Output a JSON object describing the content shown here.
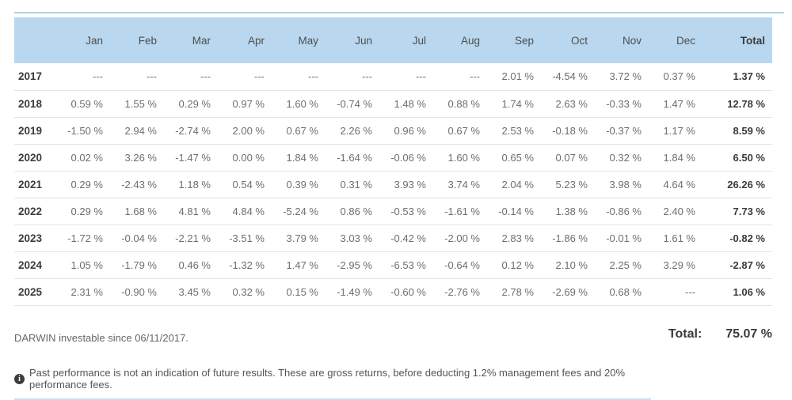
{
  "colors": {
    "header_bg": "#b9d8ef",
    "top_line": "#abd0ea",
    "underline": "#c6dff2",
    "row_border": "#e4e4e4",
    "text_muted": "#6e6e6e",
    "text_dark": "#3b3b3b",
    "page_bg": "#ffffff"
  },
  "table": {
    "columns": [
      "",
      "Jan",
      "Feb",
      "Mar",
      "Apr",
      "May",
      "Jun",
      "Jul",
      "Aug",
      "Sep",
      "Oct",
      "Nov",
      "Dec",
      "Total"
    ],
    "rows": [
      {
        "year": "2017",
        "values": [
          "---",
          "---",
          "---",
          "---",
          "---",
          "---",
          "---",
          "---",
          "2.01 %",
          "-4.54 %",
          "3.72 %",
          "0.37 %"
        ],
        "total": "1.37 %"
      },
      {
        "year": "2018",
        "values": [
          "0.59 %",
          "1.55 %",
          "0.29 %",
          "0.97 %",
          "1.60 %",
          "-0.74 %",
          "1.48 %",
          "0.88 %",
          "1.74 %",
          "2.63 %",
          "-0.33 %",
          "1.47 %"
        ],
        "total": "12.78 %"
      },
      {
        "year": "2019",
        "values": [
          "-1.50 %",
          "2.94 %",
          "-2.74 %",
          "2.00 %",
          "0.67 %",
          "2.26 %",
          "0.96 %",
          "0.67 %",
          "2.53 %",
          "-0.18 %",
          "-0.37 %",
          "1.17 %"
        ],
        "total": "8.59 %"
      },
      {
        "year": "2020",
        "values": [
          "0.02 %",
          "3.26 %",
          "-1.47 %",
          "0.00 %",
          "1.84 %",
          "-1.64 %",
          "-0.06 %",
          "1.60 %",
          "0.65 %",
          "0.07 %",
          "0.32 %",
          "1.84 %"
        ],
        "total": "6.50 %"
      },
      {
        "year": "2021",
        "values": [
          "0.29 %",
          "-2.43 %",
          "1.18 %",
          "0.54 %",
          "0.39 %",
          "0.31 %",
          "3.93 %",
          "3.74 %",
          "2.04 %",
          "5.23 %",
          "3.98 %",
          "4.64 %"
        ],
        "total": "26.26 %"
      },
      {
        "year": "2022",
        "values": [
          "0.29 %",
          "1.68 %",
          "4.81 %",
          "4.84 %",
          "-5.24 %",
          "0.86 %",
          "-0.53 %",
          "-1.61 %",
          "-0.14 %",
          "1.38 %",
          "-0.86 %",
          "2.40 %"
        ],
        "total": "7.73 %"
      },
      {
        "year": "2023",
        "values": [
          "-1.72 %",
          "-0.04 %",
          "-2.21 %",
          "-3.51 %",
          "3.79 %",
          "3.03 %",
          "-0.42 %",
          "-2.00 %",
          "2.83 %",
          "-1.86 %",
          "-0.01 %",
          "1.61 %"
        ],
        "total": "-0.82 %"
      },
      {
        "year": "2024",
        "values": [
          "1.05 %",
          "-1.79 %",
          "0.46 %",
          "-1.32 %",
          "1.47 %",
          "-2.95 %",
          "-6.53 %",
          "-0.64 %",
          "0.12 %",
          "2.10 %",
          "2.25 %",
          "3.29 %"
        ],
        "total": "-2.87 %"
      },
      {
        "year": "2025",
        "values": [
          "2.31 %",
          "-0.90 %",
          "3.45 %",
          "0.32 %",
          "0.15 %",
          "-1.49 %",
          "-0.60 %",
          "-2.76 %",
          "2.78 %",
          "-2.69 %",
          "0.68 %",
          "---"
        ],
        "total": "1.06 %"
      }
    ]
  },
  "footer": {
    "investable_note": "DARWIN investable since 06/11/2017.",
    "total_label": "Total:",
    "total_value": "75.07 %"
  },
  "disclaimer": {
    "icon_glyph": "i",
    "text": "Past performance is not an indication of future results. These are gross returns, before deducting 1.2% management fees and 20% performance fees."
  }
}
